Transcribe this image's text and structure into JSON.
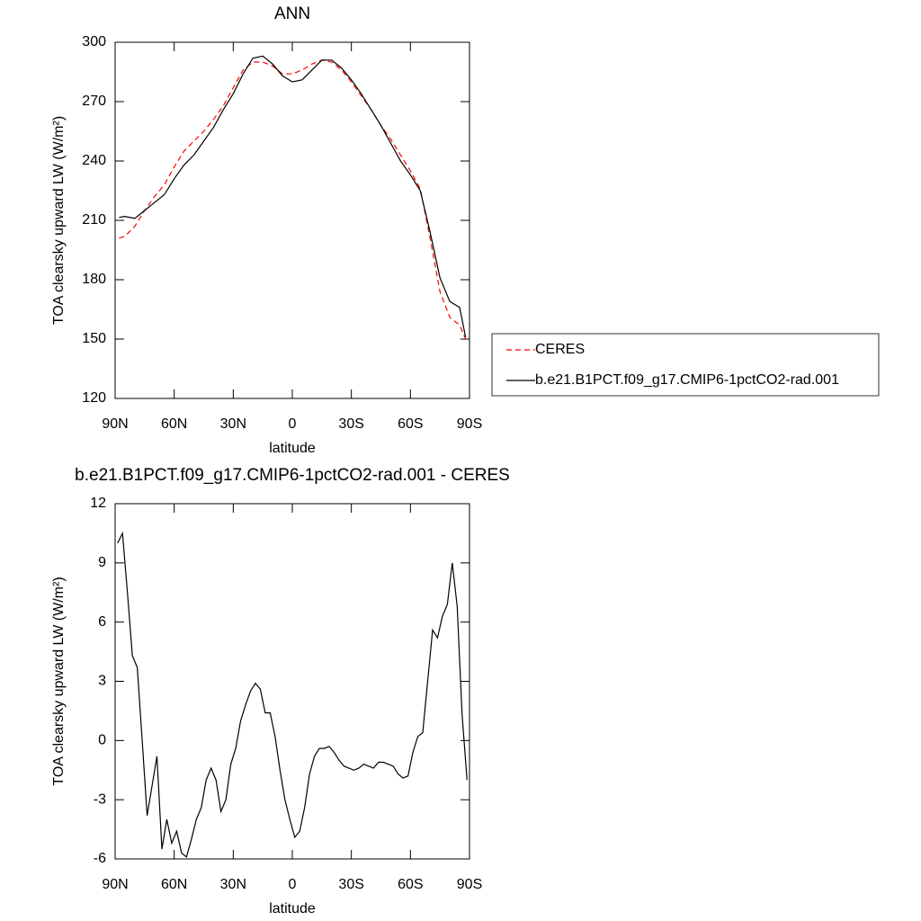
{
  "chart_data": [
    {
      "type": "line",
      "title": "ANN",
      "xlabel": "latitude",
      "ylabel": "TOA clearsky upward LW (W/m²)",
      "x": [
        88,
        85,
        80,
        75,
        70,
        65,
        60,
        55,
        50,
        45,
        40,
        35,
        30,
        25,
        20,
        15,
        10,
        5,
        0,
        -5,
        -10,
        -15,
        -20,
        -25,
        -30,
        -35,
        -40,
        -45,
        -50,
        -55,
        -60,
        -65,
        -70,
        -75,
        -80,
        -85,
        -88
      ],
      "series": [
        {
          "name": "CERES",
          "color": "#ff0000",
          "line_style": "dashed",
          "values": [
            201,
            202,
            207,
            215,
            222,
            228,
            237,
            245,
            250,
            255,
            261,
            268,
            277,
            286,
            290,
            290,
            288,
            284,
            284,
            286,
            289,
            291,
            290,
            286,
            280,
            273,
            266,
            258,
            251,
            243,
            235,
            226,
            201,
            174,
            161,
            157,
            150
          ]
        },
        {
          "name": "b.e21.B1PCT.f09_g17.CMIP6-1pctCO2-rad.001",
          "color": "#000000",
          "line_style": "solid",
          "values": [
            211.5,
            212,
            211,
            215,
            219,
            223,
            231,
            238,
            243,
            250,
            257,
            266,
            274,
            284,
            292,
            293,
            289,
            283,
            280,
            281,
            286,
            291,
            291,
            287,
            281,
            274,
            266,
            258,
            249,
            240,
            233,
            225,
            204,
            181,
            169,
            166,
            151
          ]
        }
      ],
      "xlim": [
        90,
        -90
      ],
      "xticks": [
        {
          "value": 90,
          "label": "90N"
        },
        {
          "value": 60,
          "label": "60N"
        },
        {
          "value": 30,
          "label": "30N"
        },
        0,
        {
          "value": -30,
          "label": "30S"
        },
        {
          "value": -60,
          "label": "60S"
        },
        {
          "value": -90,
          "label": "90S"
        }
      ],
      "ylim": [
        120,
        300
      ],
      "yticks": [
        120,
        150,
        180,
        210,
        240,
        270,
        300
      ]
    },
    {
      "type": "line",
      "title": "b.e21.B1PCT.f09_g17.CMIP6-1pctCO2-rad.001 - CERES",
      "xlabel": "latitude",
      "ylabel": "TOA clearsky upward LW (W/m²)",
      "x": [
        88.75,
        86.25,
        83.75,
        81.25,
        78.75,
        76.25,
        73.75,
        71.25,
        68.75,
        66.25,
        63.75,
        61.25,
        58.75,
        56.25,
        53.75,
        51.25,
        48.75,
        46.25,
        43.75,
        41.25,
        38.75,
        36.25,
        33.75,
        31.25,
        28.75,
        26.25,
        23.75,
        21.25,
        18.75,
        16.25,
        13.75,
        11.25,
        8.75,
        6.25,
        3.75,
        1.25,
        -1.25,
        -3.75,
        -6.25,
        -8.75,
        -11.25,
        -13.75,
        -16.25,
        -18.75,
        -21.25,
        -23.75,
        -26.25,
        -28.75,
        -31.25,
        -33.75,
        -36.25,
        -38.75,
        -41.25,
        -43.75,
        -46.25,
        -48.75,
        -51.25,
        -53.75,
        -56.25,
        -58.75,
        -61.25,
        -63.75,
        -66.25,
        -68.75,
        -71.25,
        -73.75,
        -76.25,
        -78.75,
        -81.25,
        -83.75,
        -86.25,
        -88.75
      ],
      "series": [
        {
          "color": "#000000",
          "line_style": "solid",
          "values": [
            10,
            10.5,
            7.5,
            4.3,
            3.7,
            0,
            -3.8,
            -2.3,
            -0.8,
            -5.5,
            -4,
            -5.2,
            -4.6,
            -5.7,
            -5.9,
            -5,
            -4,
            -3.4,
            -2,
            -1.4,
            -2,
            -3.6,
            -3,
            -1.2,
            -0.4,
            1,
            1.8,
            2.5,
            2.9,
            2.6,
            1.4,
            1.4,
            0.2,
            -1.5,
            -3,
            -4,
            -4.9,
            -4.6,
            -3.4,
            -1.7,
            -0.8,
            -0.4,
            -0.4,
            -0.3,
            -0.6,
            -1,
            -1.3,
            -1.4,
            -1.5,
            -1.4,
            -1.2,
            -1.3,
            -1.4,
            -1.1,
            -1.1,
            -1.2,
            -1.3,
            -1.7,
            -1.9,
            -1.8,
            -0.6,
            0.2,
            0.4,
            3,
            5.6,
            5.2,
            6.3,
            6.9,
            9,
            6.8,
            1.3,
            -2
          ]
        }
      ],
      "xlim": [
        90,
        -90
      ],
      "xticks": [
        {
          "value": 90,
          "label": "90N"
        },
        {
          "value": 60,
          "label": "60N"
        },
        {
          "value": 30,
          "label": "30N"
        },
        0,
        {
          "value": -30,
          "label": "30S"
        },
        {
          "value": -60,
          "label": "60S"
        },
        {
          "value": -90,
          "label": "90S"
        }
      ],
      "ylim": [
        -6,
        12
      ],
      "yticks": [
        -6,
        -3,
        0,
        3,
        6,
        9,
        12
      ]
    }
  ]
}
